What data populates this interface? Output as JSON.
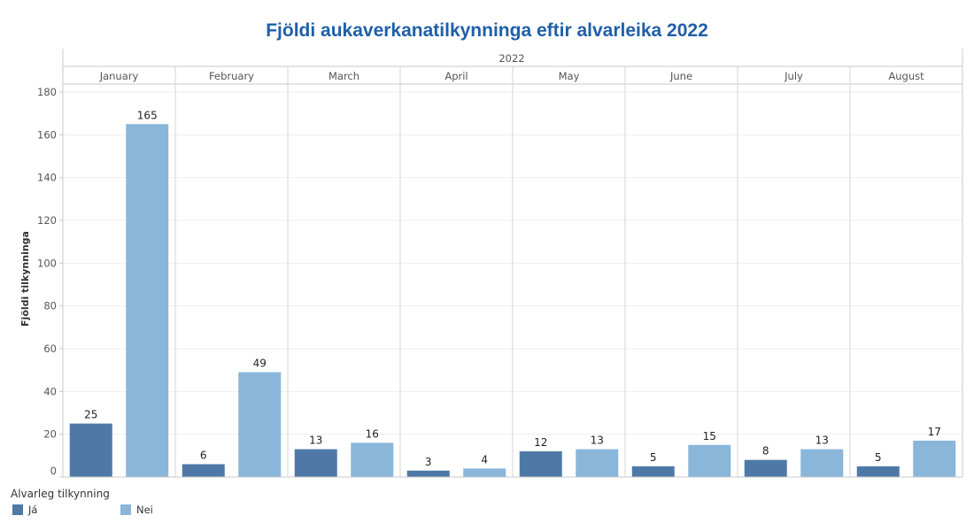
{
  "chart_data": {
    "type": "bar",
    "title": "Fjöldi aukaverkanatilkynninga eftir alvarleika 2022",
    "year_header": "2022",
    "categories": [
      "January",
      "February",
      "March",
      "April",
      "May",
      "June",
      "July",
      "August"
    ],
    "ylabel": "Fjöldi tilkynninga",
    "ylim": [
      0,
      180
    ],
    "yticks": [
      "0",
      "20",
      "40",
      "60",
      "80",
      "100",
      "120",
      "140",
      "160",
      "180"
    ],
    "series": [
      {
        "name": "Já",
        "color": "#4e79a7",
        "values": [
          25,
          6,
          13,
          3,
          12,
          5,
          8,
          5
        ]
      },
      {
        "name": "Nei",
        "color": "#8ab6d9",
        "values": [
          165,
          49,
          16,
          4,
          13,
          15,
          13,
          17
        ]
      }
    ],
    "legend": {
      "title": "Alvarleg tilkynning",
      "placement": "bottom-left"
    },
    "title_color": "#1f5fa8",
    "grid": true
  }
}
